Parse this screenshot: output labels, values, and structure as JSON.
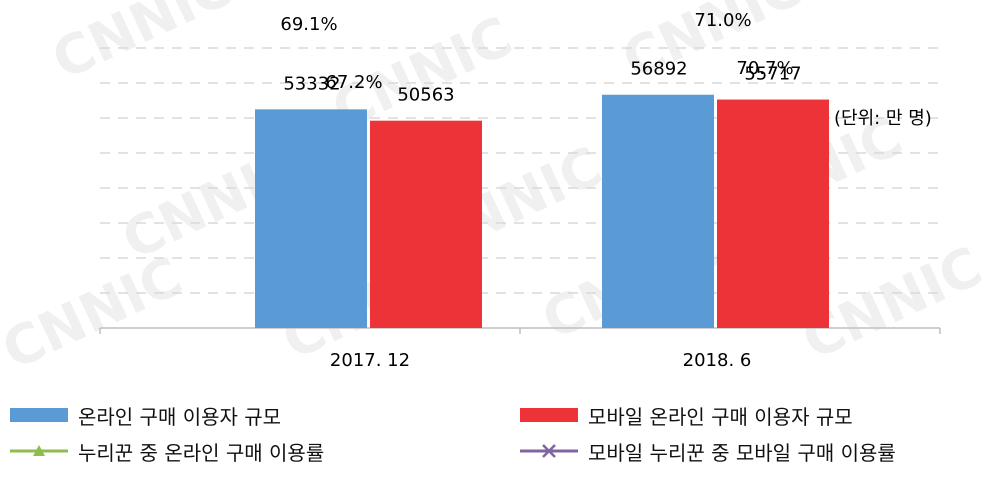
{
  "unit_label": "(단위: 만 명)",
  "chart_data": {
    "type": "bar",
    "categories": [
      "2017. 12",
      "2018. 6"
    ],
    "series": [
      {
        "name": "온라인 구매 이용자 규모",
        "kind": "bar",
        "color": "#5b9bd5",
        "values": [
          53332,
          56892
        ]
      },
      {
        "name": "모바일 온라인 구매 이용자 규모",
        "kind": "bar",
        "color": "#ee3338",
        "values": [
          50563,
          55717
        ]
      },
      {
        "name": "누리꾼 중 온라인 구매 이용률",
        "kind": "line",
        "color": "#8fbd4c",
        "marker": "triangle",
        "values": [
          69.1,
          71.0
        ],
        "labels": [
          "69.1%",
          "71.0%"
        ]
      },
      {
        "name": "모바일 누리꾼 중 모바일 구매 이용률",
        "kind": "line",
        "color": "#8064a2",
        "marker": "x",
        "values": [
          67.2,
          70.7
        ],
        "labels": [
          "67.2%",
          "70.7%"
        ]
      }
    ],
    "bar_data_labels": [
      [
        "53332",
        "56892"
      ],
      [
        "50563",
        "55717"
      ]
    ],
    "bar_axis_range": [
      0,
      80000
    ],
    "rate_axis_range": [
      50,
      75
    ],
    "grid": true,
    "legend_position": "bottom",
    "watermark": "CNNIC"
  }
}
